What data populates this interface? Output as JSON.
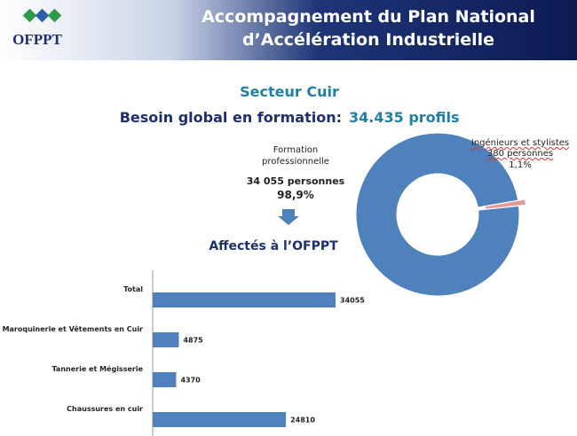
{
  "header": {
    "logo": "OFPPT",
    "title": [
      "Accompagnement du Plan National",
      "d’Accélération Industrielle"
    ]
  },
  "headline": {
    "sector": "Secteur Cuir",
    "need_label": "Besoin global en formation:",
    "need_value": "34.435 profils"
  },
  "chart_data": [
    {
      "type": "pie",
      "donut": true,
      "categories": [
        "Formation professionnelle",
        "Ingénieurs et stylistes"
      ],
      "count_labels": [
        "34 055 personnes",
        "380 personnes"
      ],
      "values": [
        98.9,
        1.1
      ],
      "value_labels": [
        "98,9%",
        "1,1%"
      ],
      "colors": [
        "#4f81bd",
        "#e39a9a"
      ]
    },
    {
      "type": "bar",
      "orientation": "horizontal",
      "title": "Affectés à l’OFPPT",
      "categories": [
        "Total",
        "Maroquinerie et Vêtements  en Cuir",
        "Tannerie et Mégisserie",
        "Chaussures en cuir"
      ],
      "values": [
        34055,
        4875,
        4370,
        24810
      ],
      "color": "#4f81bd",
      "xlim": [
        0,
        40000
      ]
    }
  ]
}
